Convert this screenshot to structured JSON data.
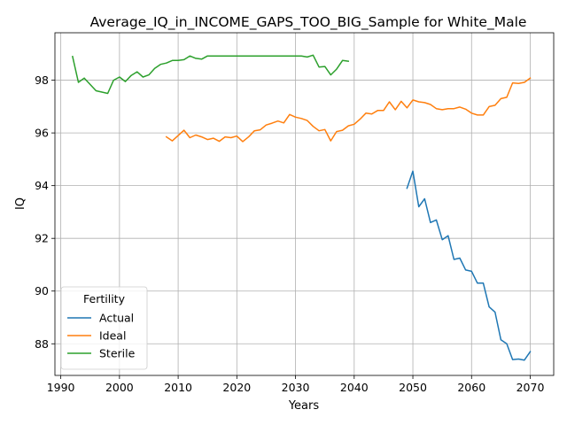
{
  "chart_data": {
    "type": "line",
    "title": "Average_IQ_in_INCOME_GAPS_TOO_BIG_Sample for White_Male",
    "xlabel": "Years",
    "ylabel": "IQ",
    "xlim": [
      1989,
      2074
    ],
    "ylim": [
      86.8,
      99.8
    ],
    "xticks": [
      1990,
      2000,
      2010,
      2020,
      2030,
      2040,
      2050,
      2060,
      2070
    ],
    "yticks": [
      88,
      90,
      92,
      94,
      96,
      98
    ],
    "grid": true,
    "legend": {
      "title": "Fertility",
      "placement": "lower-left"
    },
    "series": [
      {
        "name": "Actual",
        "color": "#1f77b4",
        "x": [
          2049,
          2050,
          2051,
          2052,
          2053,
          2054,
          2055,
          2056,
          2057,
          2058,
          2059,
          2060,
          2061,
          2062,
          2063,
          2064,
          2065,
          2066,
          2067,
          2068,
          2069,
          2070
        ],
        "y": [
          93.9,
          94.55,
          93.2,
          93.5,
          92.6,
          92.7,
          91.95,
          92.1,
          91.2,
          91.25,
          90.8,
          90.75,
          90.3,
          90.3,
          89.4,
          89.2,
          88.15,
          88.0,
          87.4,
          87.42,
          87.38,
          87.7
        ]
      },
      {
        "name": "Ideal",
        "color": "#ff7f0e",
        "x": [
          2008,
          2009,
          2010,
          2011,
          2012,
          2013,
          2014,
          2015,
          2016,
          2017,
          2018,
          2019,
          2020,
          2021,
          2022,
          2023,
          2024,
          2025,
          2026,
          2027,
          2028,
          2029,
          2030,
          2031,
          2032,
          2033,
          2034,
          2035,
          2036,
          2037,
          2038,
          2039,
          2040,
          2041,
          2042,
          2043,
          2044,
          2045,
          2046,
          2047,
          2048,
          2049,
          2050,
          2051,
          2052,
          2053,
          2054,
          2055,
          2056,
          2057,
          2058,
          2059,
          2060,
          2061,
          2062,
          2063,
          2064,
          2065,
          2066,
          2067,
          2068,
          2069,
          2070
        ],
        "y": [
          95.85,
          95.7,
          95.9,
          96.1,
          95.82,
          95.92,
          95.85,
          95.75,
          95.8,
          95.68,
          95.85,
          95.82,
          95.88,
          95.67,
          95.85,
          96.08,
          96.12,
          96.3,
          96.37,
          96.45,
          96.38,
          96.7,
          96.6,
          96.55,
          96.47,
          96.25,
          96.08,
          96.13,
          95.7,
          96.05,
          96.1,
          96.27,
          96.33,
          96.52,
          96.75,
          96.72,
          96.85,
          96.85,
          97.18,
          96.88,
          97.2,
          96.95,
          97.25,
          97.18,
          97.15,
          97.08,
          96.92,
          96.88,
          96.92,
          96.92,
          96.98,
          96.9,
          96.75,
          96.68,
          96.68,
          97.0,
          97.05,
          97.3,
          97.35,
          97.9,
          97.88,
          97.92,
          98.08
        ]
      },
      {
        "name": "Sterile",
        "color": "#2ca02c",
        "x": [
          1992,
          1993,
          1994,
          1996,
          1998,
          1999,
          2000,
          2001,
          2002,
          2003,
          2004,
          2005,
          2006,
          2007,
          2008,
          2009,
          2010,
          2011,
          2012,
          2013,
          2014,
          2015,
          2016,
          2017,
          2018,
          2019,
          2020,
          2021,
          2022,
          2023,
          2024,
          2025,
          2026,
          2027,
          2028,
          2029,
          2030,
          2031,
          2032,
          2033,
          2034,
          2035,
          2036,
          2037,
          2038,
          2039
        ],
        "y": [
          98.9,
          97.92,
          98.08,
          97.6,
          97.5,
          98.0,
          98.12,
          97.95,
          98.18,
          98.32,
          98.12,
          98.2,
          98.45,
          98.6,
          98.65,
          98.75,
          98.75,
          98.78,
          98.92,
          98.83,
          98.8,
          98.92,
          98.92,
          98.92,
          98.92,
          98.92,
          98.92,
          98.92,
          98.92,
          98.92,
          98.92,
          98.92,
          98.92,
          98.92,
          98.92,
          98.92,
          98.92,
          98.92,
          98.88,
          98.95,
          98.5,
          98.52,
          98.2,
          98.42,
          98.75,
          98.72
        ]
      }
    ]
  }
}
